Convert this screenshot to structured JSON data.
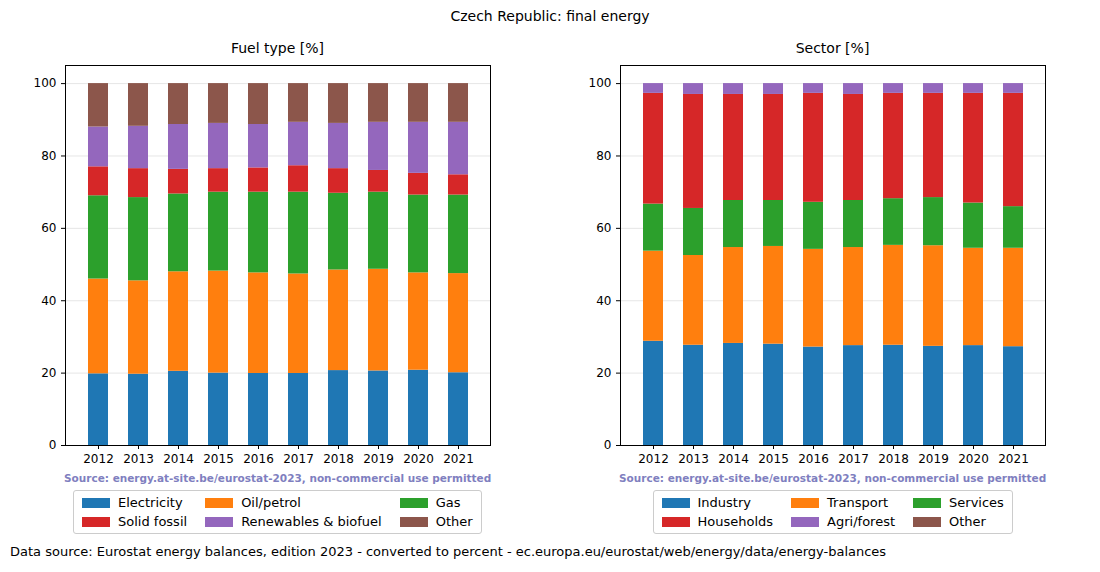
{
  "title": "Czech Republic: final energy",
  "caption": "Data source: Eurostat energy balances, edition 2023 - converted to percent - ec.europa.eu/eurostat/web/energy/data/energy-balances",
  "chart_data": [
    {
      "type": "bar",
      "stacked": true,
      "grid": true,
      "title": "Fuel type [%]",
      "note": "Source: energy.at-site.be/eurostat-2023, non-commercial use permitted",
      "categories": [
        "2012",
        "2013",
        "2014",
        "2015",
        "2016",
        "2017",
        "2018",
        "2019",
        "2020",
        "2021"
      ],
      "ylim": [
        0,
        105
      ],
      "yticks": [
        0,
        20,
        40,
        60,
        80,
        100
      ],
      "series": [
        {
          "name": "Electricity",
          "color": "#1f77b4",
          "values": [
            19.8,
            19.7,
            20.5,
            20.0,
            19.9,
            19.9,
            20.7,
            20.6,
            20.8,
            20.1
          ]
        },
        {
          "name": "Oil/petrol",
          "color": "#ff7f0e",
          "values": [
            26.2,
            25.8,
            27.5,
            28.2,
            27.8,
            27.5,
            27.8,
            28.1,
            26.9,
            27.4
          ]
        },
        {
          "name": "Gas",
          "color": "#2ca02c",
          "values": [
            23.0,
            23.0,
            21.5,
            21.8,
            22.3,
            22.6,
            21.2,
            21.3,
            21.5,
            21.7
          ]
        },
        {
          "name": "Solid fossil",
          "color": "#d62728",
          "values": [
            8.0,
            8.0,
            6.8,
            6.5,
            6.7,
            7.3,
            6.8,
            6.0,
            6.0,
            5.6
          ]
        },
        {
          "name": "Renewables & biofuel",
          "color": "#9467bd",
          "values": [
            11.0,
            11.7,
            12.4,
            12.5,
            12.0,
            12.0,
            12.5,
            13.3,
            14.1,
            14.5
          ]
        },
        {
          "name": "Other",
          "color": "#8c564b",
          "values": [
            12.0,
            11.8,
            11.3,
            11.0,
            11.3,
            10.7,
            11.0,
            10.7,
            10.7,
            10.7
          ]
        }
      ]
    },
    {
      "type": "bar",
      "stacked": true,
      "grid": true,
      "title": "Sector [%]",
      "note": "Source: energy.at-site.be/eurostat-2023, non-commercial use permitted",
      "categories": [
        "2012",
        "2013",
        "2014",
        "2015",
        "2016",
        "2017",
        "2018",
        "2019",
        "2020",
        "2021"
      ],
      "ylim": [
        0,
        105
      ],
      "yticks": [
        0,
        20,
        40,
        60,
        80,
        100
      ],
      "series": [
        {
          "name": "Industry",
          "color": "#1f77b4",
          "values": [
            28.8,
            27.7,
            28.2,
            28.0,
            27.2,
            27.6,
            27.7,
            27.4,
            27.6,
            27.3
          ]
        },
        {
          "name": "Transport",
          "color": "#ff7f0e",
          "values": [
            24.9,
            24.8,
            26.5,
            27.0,
            27.0,
            27.1,
            27.6,
            27.8,
            26.9,
            27.2
          ]
        },
        {
          "name": "Services",
          "color": "#2ca02c",
          "values": [
            13.0,
            13.0,
            13.0,
            12.7,
            13.0,
            13.0,
            12.9,
            13.3,
            12.5,
            11.5
          ]
        },
        {
          "name": "Households",
          "color": "#d62728",
          "values": [
            30.6,
            31.5,
            29.3,
            29.3,
            30.1,
            29.3,
            29.1,
            28.8,
            30.3,
            31.3
          ]
        },
        {
          "name": "Agri/forest",
          "color": "#9467bd",
          "values": [
            2.7,
            3.0,
            3.0,
            3.0,
            2.7,
            3.0,
            2.7,
            2.7,
            2.7,
            2.7
          ]
        },
        {
          "name": "Other",
          "color": "#8c564b",
          "values": [
            0,
            0,
            0,
            0,
            0,
            0,
            0,
            0,
            0,
            0
          ]
        }
      ]
    }
  ]
}
